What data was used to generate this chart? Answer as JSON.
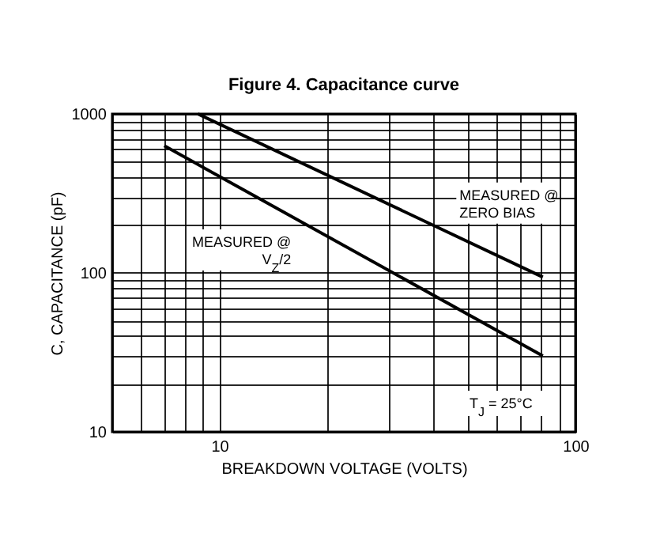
{
  "chart_data": {
    "type": "line",
    "title": "Figure 4. Capacitance curve",
    "xlabel": "BREAKDOWN VOLTAGE (VOLTS)",
    "ylabel": "C, CAPACITANCE (pF)",
    "log": "xy",
    "grid": true,
    "legend": false,
    "line_style": "solid",
    "marker": "none",
    "xlim": [
      5,
      100
    ],
    "ylim": [
      10,
      1000
    ],
    "xticks": [
      {
        "value": 5,
        "label": null
      },
      {
        "value": 6,
        "label": null
      },
      {
        "value": 7,
        "label": null
      },
      {
        "value": 8,
        "label": null
      },
      {
        "value": 9,
        "label": null
      },
      10,
      {
        "value": 20,
        "label": null
      },
      {
        "value": 30,
        "label": null
      },
      {
        "value": 40,
        "label": null
      },
      {
        "value": 50,
        "label": null
      },
      {
        "value": 60,
        "label": null
      },
      {
        "value": 70,
        "label": null
      },
      {
        "value": 80,
        "label": null
      },
      {
        "value": 90,
        "label": null
      },
      100
    ],
    "yticks": [
      10,
      {
        "value": 20,
        "label": null
      },
      {
        "value": 30,
        "label": null
      },
      {
        "value": 40,
        "label": null
      },
      {
        "value": 50,
        "label": null
      },
      {
        "value": 60,
        "label": null
      },
      {
        "value": 70,
        "label": null
      },
      {
        "value": 80,
        "label": null
      },
      {
        "value": 90,
        "label": null
      },
      100,
      {
        "value": 200,
        "label": null
      },
      {
        "value": 300,
        "label": null
      },
      {
        "value": 400,
        "label": null
      },
      {
        "value": 500,
        "label": null
      },
      {
        "value": 600,
        "label": null
      },
      {
        "value": 700,
        "label": null
      },
      {
        "value": 800,
        "label": null
      },
      {
        "value": 900,
        "label": null
      },
      1000
    ],
    "series": [
      {
        "name": "MEASURED @\nZERO BIAS",
        "color": "#000000",
        "x": [
          8.7,
          81
        ],
        "values": [
          1000,
          94
        ]
      },
      {
        "name": "MEASURED @\nV$_{Z}$/2",
        "color": "#000000",
        "x": [
          7,
          81
        ],
        "values": [
          630,
          30
        ]
      }
    ],
    "annotations": [
      "T$_{J}$ = 25°C"
    ]
  }
}
